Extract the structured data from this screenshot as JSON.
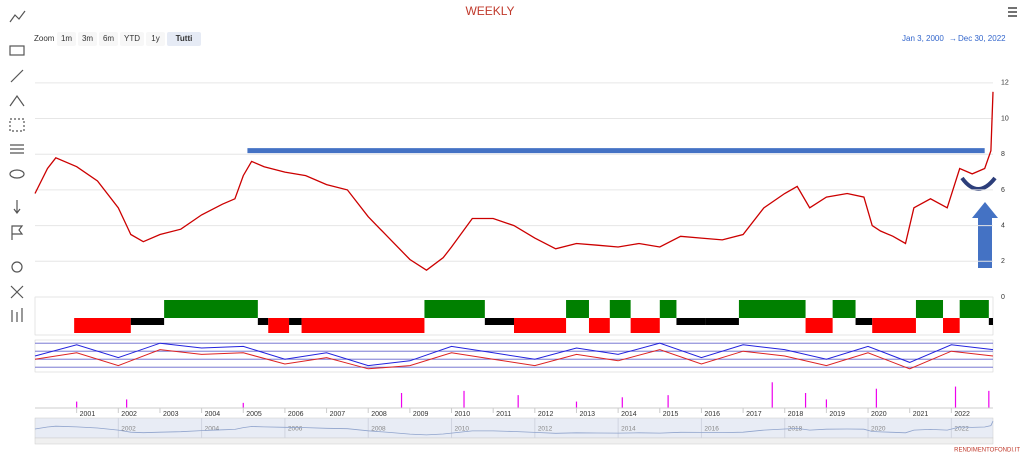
{
  "chart_data": {
    "type": "line",
    "title": "WEEKLY",
    "zoom_label": "Zoom",
    "zoom_buttons": [
      "1m",
      "3m",
      "6m",
      "YTD",
      "1y",
      "Tutti"
    ],
    "zoom_selected": 5,
    "range_from": "Jan 3, 2000",
    "range_arrow": "→",
    "range_to": "Dec 30, 2022",
    "footer": "RENDIMENTOFONDI.IT",
    "color": "#cc0000",
    "x": [
      2000,
      2000.3,
      2000.5,
      2001,
      2001.5,
      2002,
      2002.3,
      2002.6,
      2003,
      2003.5,
      2004,
      2004.5,
      2004.8,
      2005,
      2005.2,
      2005.5,
      2006,
      2006.5,
      2007,
      2007.5,
      2008,
      2008.5,
      2009,
      2009.4,
      2009.8,
      2010,
      2010.5,
      2011,
      2011.5,
      2012,
      2012.5,
      2013,
      2013.5,
      2014,
      2014.5,
      2015,
      2015.5,
      2016,
      2016.5,
      2017,
      2017.5,
      2018,
      2018.3,
      2018.6,
      2019,
      2019.5,
      2019.9,
      2020.1,
      2020.3,
      2020.6,
      2020.9,
      2021.1,
      2021.5,
      2021.9,
      2022.2,
      2022.5,
      2022.8,
      2022.95,
      2023
    ],
    "values": [
      5.8,
      7.2,
      7.8,
      7.3,
      6.5,
      5.0,
      3.5,
      3.1,
      3.5,
      3.8,
      4.6,
      5.2,
      5.5,
      6.8,
      7.6,
      7.3,
      7.0,
      6.8,
      6.3,
      6.0,
      4.5,
      3.3,
      2.1,
      1.5,
      2.2,
      2.8,
      4.4,
      4.4,
      4.0,
      3.3,
      2.7,
      3.0,
      2.9,
      2.8,
      3.0,
      2.8,
      3.4,
      3.3,
      3.2,
      3.5,
      5.0,
      5.8,
      6.2,
      5.0,
      5.6,
      5.8,
      5.6,
      4.0,
      3.7,
      3.4,
      3.0,
      5.0,
      5.5,
      5.0,
      7.2,
      6.9,
      7.2,
      8.2,
      11.5
    ],
    "xlim": [
      2000,
      2023
    ],
    "xticks": [
      2001,
      2002,
      2003,
      2004,
      2005,
      2006,
      2007,
      2008,
      2009,
      2010,
      2011,
      2012,
      2013,
      2014,
      2015,
      2016,
      2017,
      2018,
      2019,
      2020,
      2021,
      2022
    ],
    "ylim": [
      0,
      13
    ],
    "yticks": [
      0,
      2,
      4,
      6,
      8,
      10,
      12
    ],
    "grid": true,
    "navigator_ticks": [
      2002,
      2004,
      2006,
      2008,
      2010,
      2012,
      2014,
      2016,
      2018,
      2020,
      2022
    ],
    "level": {
      "value": 8.2,
      "x": [
        2005.1,
        2022.8
      ],
      "color": "#4472c4"
    },
    "signal": {
      "edges": [
        2000.94,
        2002.3,
        2003.1,
        2005.35,
        2005.6,
        2006.1,
        2006.4,
        2009.35,
        2010.8,
        2011.5,
        2012.75,
        2013.3,
        2013.8,
        2014.3,
        2015.0,
        2015.4,
        2016.1,
        2016.9,
        2018.5,
        2019.15,
        2019.7,
        2020.1,
        2021.15,
        2021.8,
        2022.2,
        2022.9,
        2023
      ],
      "values": [
        -1,
        0,
        1,
        0,
        -1,
        0,
        -1,
        1,
        0,
        -1,
        1,
        -1,
        1,
        -1,
        1,
        0,
        0,
        1,
        -1,
        1,
        0,
        -1,
        1,
        -1,
        1,
        0
      ],
      "colors": {
        "up": "#008000",
        "flat": "#000000",
        "down": "#ff0000"
      }
    },
    "oscillator": {
      "x": [
        2000,
        2001,
        2002,
        2003,
        2004,
        2005,
        2006,
        2007,
        2008,
        2009,
        2010,
        2011,
        2012,
        2013,
        2014,
        2015,
        2016,
        2017,
        2018,
        2019,
        2020,
        2021,
        2022,
        2023
      ],
      "ylim": [
        0,
        100
      ],
      "levels": [
        15,
        40,
        65,
        90
      ],
      "series": [
        {
          "color": "#2222dd",
          "values": [
            50,
            85,
            45,
            90,
            75,
            80,
            40,
            60,
            20,
            35,
            80,
            60,
            40,
            75,
            55,
            90,
            45,
            85,
            70,
            40,
            80,
            30,
            85,
            70
          ]
        },
        {
          "color": "#dd2222",
          "values": [
            40,
            60,
            20,
            70,
            55,
            60,
            25,
            45,
            10,
            20,
            60,
            40,
            20,
            55,
            35,
            70,
            25,
            65,
            50,
            20,
            60,
            10,
            65,
            50
          ]
        }
      ]
    },
    "volume": {
      "color": "#ee00ee",
      "ylim": [
        0,
        70
      ],
      "x": [
        2001,
        2002.2,
        2005,
        2008.8,
        2010.3,
        2011.6,
        2013,
        2014.1,
        2015.2,
        2017.7,
        2018.5,
        2019,
        2020.2,
        2022.1,
        2022.9
      ],
      "values": [
        15,
        20,
        12,
        35,
        40,
        30,
        15,
        25,
        30,
        60,
        35,
        20,
        45,
        50,
        40
      ]
    }
  }
}
